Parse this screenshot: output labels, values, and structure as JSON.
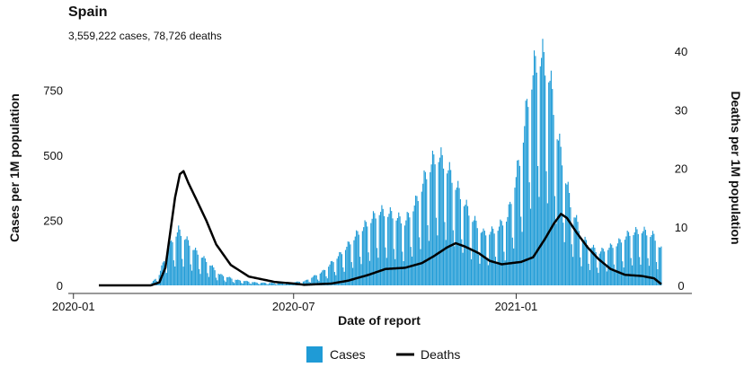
{
  "title": "Spain",
  "subtitle": "3,559,222 cases, 78,726 deaths",
  "colors": {
    "cases": "#1f9bd6",
    "deaths": "#000000"
  },
  "chart_data": {
    "type": "bar",
    "xlabel": "Date of report",
    "ylabel_left": "Cases per 1M population",
    "ylabel_right": "Deaths per 1M population",
    "x_range": [
      "2020-01-22",
      "2021-05-01"
    ],
    "ylim_left": [
      0,
      900
    ],
    "ylim_right": [
      0,
      40
    ],
    "x_ticks": [
      "2020-01-01",
      "2020-07-01",
      "2021-01-01"
    ],
    "x_tick_labels": [
      "2020-01",
      "2020-07",
      "2021-01"
    ],
    "y_ticks_left": [
      0,
      250,
      500,
      750
    ],
    "y_tick_labels_left": [
      "0",
      "250",
      "500",
      "750"
    ],
    "y_ticks_right": [
      0,
      10,
      20,
      30,
      40
    ],
    "y_tick_labels_right": [
      "0",
      "10",
      "20",
      "30",
      "40"
    ],
    "legend": {
      "placement": "bottom",
      "items": [
        "Cases",
        "Deaths"
      ]
    },
    "series": [
      {
        "name": "Cases",
        "kind": "bar",
        "daily": true,
        "weekly_pattern": [
          1.0,
          1.05,
          1.15,
          1.1,
          1.0,
          0.55,
          0.4
        ],
        "points": [
          [
            "2020-01-22",
            0
          ],
          [
            "2020-02-25",
            0
          ],
          [
            "2020-03-05",
            5
          ],
          [
            "2020-03-12",
            40
          ],
          [
            "2020-03-18",
            120
          ],
          [
            "2020-03-24",
            175
          ],
          [
            "2020-03-28",
            200
          ],
          [
            "2020-04-02",
            175
          ],
          [
            "2020-04-10",
            130
          ],
          [
            "2020-04-20",
            90
          ],
          [
            "2020-05-01",
            40
          ],
          [
            "2020-05-15",
            20
          ],
          [
            "2020-06-01",
            10
          ],
          [
            "2020-06-20",
            8
          ],
          [
            "2020-07-10",
            15
          ],
          [
            "2020-07-25",
            50
          ],
          [
            "2020-08-10",
            120
          ],
          [
            "2020-08-25",
            200
          ],
          [
            "2020-09-10",
            270
          ],
          [
            "2020-09-20",
            260
          ],
          [
            "2020-10-01",
            230
          ],
          [
            "2020-10-10",
            300
          ],
          [
            "2020-10-20",
            420
          ],
          [
            "2020-10-28",
            480
          ],
          [
            "2020-11-05",
            430
          ],
          [
            "2020-11-15",
            340
          ],
          [
            "2020-11-25",
            250
          ],
          [
            "2020-12-05",
            190
          ],
          [
            "2020-12-15",
            200
          ],
          [
            "2020-12-25",
            250
          ],
          [
            "2021-01-05",
            480
          ],
          [
            "2021-01-12",
            720
          ],
          [
            "2021-01-20",
            850
          ],
          [
            "2021-01-28",
            780
          ],
          [
            "2021-02-05",
            530
          ],
          [
            "2021-02-15",
            300
          ],
          [
            "2021-02-25",
            170
          ],
          [
            "2021-03-10",
            120
          ],
          [
            "2021-03-25",
            150
          ],
          [
            "2021-04-05",
            190
          ],
          [
            "2021-04-15",
            200
          ],
          [
            "2021-04-25",
            180
          ],
          [
            "2021-05-01",
            130
          ]
        ]
      },
      {
        "name": "Deaths",
        "kind": "line",
        "points": [
          [
            "2020-01-22",
            0
          ],
          [
            "2020-03-05",
            0
          ],
          [
            "2020-03-12",
            0.5
          ],
          [
            "2020-03-17",
            3
          ],
          [
            "2020-03-21",
            9
          ],
          [
            "2020-03-25",
            15
          ],
          [
            "2020-03-29",
            19
          ],
          [
            "2020-04-01",
            19.5
          ],
          [
            "2020-04-05",
            17.5
          ],
          [
            "2020-04-12",
            14.5
          ],
          [
            "2020-04-20",
            11
          ],
          [
            "2020-04-28",
            7
          ],
          [
            "2020-05-10",
            3.5
          ],
          [
            "2020-05-25",
            1.5
          ],
          [
            "2020-06-15",
            0.6
          ],
          [
            "2020-07-01",
            0.3
          ],
          [
            "2020-07-10",
            0.1
          ],
          [
            "2020-07-20",
            0.2
          ],
          [
            "2020-08-01",
            0.3
          ],
          [
            "2020-08-15",
            0.8
          ],
          [
            "2020-09-01",
            1.8
          ],
          [
            "2020-09-15",
            2.8
          ],
          [
            "2020-10-01",
            3
          ],
          [
            "2020-10-15",
            3.8
          ],
          [
            "2020-10-25",
            5
          ],
          [
            "2020-11-05",
            6.5
          ],
          [
            "2020-11-12",
            7.2
          ],
          [
            "2020-11-20",
            6.6
          ],
          [
            "2020-12-01",
            5.5
          ],
          [
            "2020-12-10",
            4.2
          ],
          [
            "2020-12-20",
            3.6
          ],
          [
            "2021-01-05",
            4
          ],
          [
            "2021-01-15",
            4.8
          ],
          [
            "2021-01-25",
            8
          ],
          [
            "2021-02-01",
            10.5
          ],
          [
            "2021-02-07",
            12.2
          ],
          [
            "2021-02-12",
            11.5
          ],
          [
            "2021-02-20",
            9
          ],
          [
            "2021-03-01",
            6.5
          ],
          [
            "2021-03-10",
            4.5
          ],
          [
            "2021-03-20",
            2.8
          ],
          [
            "2021-04-01",
            1.8
          ],
          [
            "2021-04-15",
            1.6
          ],
          [
            "2021-04-25",
            1.2
          ],
          [
            "2021-05-01",
            0.2
          ]
        ]
      }
    ]
  }
}
